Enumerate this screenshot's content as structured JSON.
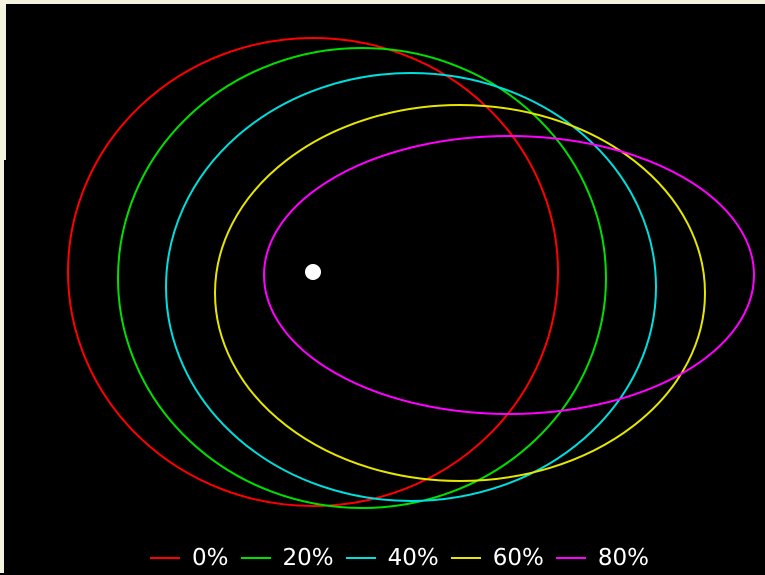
{
  "colors": {
    "background": "#000000",
    "focus": "#ffffff"
  },
  "orbits": [
    {
      "label": "0%",
      "color": "#ff0000"
    },
    {
      "label": "20%",
      "color": "#00e000"
    },
    {
      "label": "40%",
      "color": "#00dede"
    },
    {
      "label": "60%",
      "color": "#e6e600"
    },
    {
      "label": "80%",
      "color": "#ff00ff"
    }
  ]
}
